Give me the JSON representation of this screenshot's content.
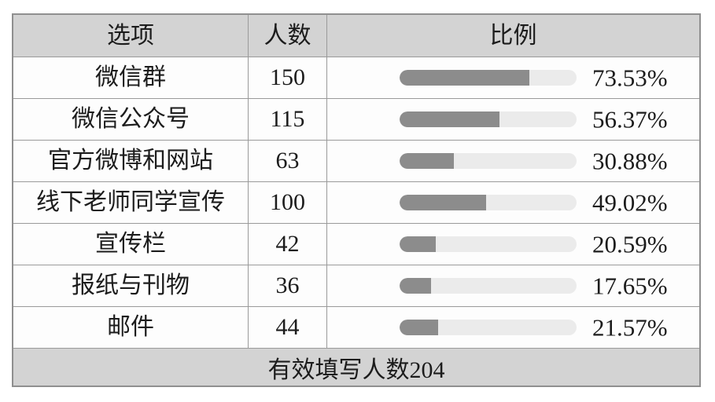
{
  "colors": {
    "header_bg": "#d3d3d3",
    "footer_bg": "#d3d3d3",
    "border": "#9a9a9a",
    "bar_fill": "#8c8c8c",
    "bar_track": "#ebebeb",
    "text": "#1c1c1c",
    "row_bg": "#fdfdfd"
  },
  "table": {
    "headers": {
      "option": "选项",
      "count": "人数",
      "ratio": "比例"
    },
    "rows": [
      {
        "option": "微信群",
        "count": "150",
        "percent_label": "73.53%",
        "percent_value": 73.53
      },
      {
        "option": "微信公众号",
        "count": "115",
        "percent_label": "56.37%",
        "percent_value": 56.37
      },
      {
        "option": "官方微博和网站",
        "count": "63",
        "percent_label": "30.88%",
        "percent_value": 30.88
      },
      {
        "option": "线下老师同学宣传",
        "count": "100",
        "percent_label": "49.02%",
        "percent_value": 49.02
      },
      {
        "option": "宣传栏",
        "count": "42",
        "percent_label": "20.59%",
        "percent_value": 20.59
      },
      {
        "option": "报纸与刊物",
        "count": "36",
        "percent_label": "17.65%",
        "percent_value": 17.65
      },
      {
        "option": "邮件",
        "count": "44",
        "percent_label": "21.57%",
        "percent_value": 21.57
      }
    ],
    "footer": "有效填写人数204"
  },
  "chart_data": {
    "type": "table",
    "columns": [
      "选项",
      "人数",
      "比例"
    ],
    "categories": [
      "微信群",
      "微信公众号",
      "官方微博和网站",
      "线下老师同学宣传",
      "宣传栏",
      "报纸与刊物",
      "邮件"
    ],
    "series": [
      {
        "name": "人数",
        "values": [
          150,
          115,
          63,
          100,
          42,
          36,
          44
        ]
      },
      {
        "name": "比例(%)",
        "values": [
          73.53,
          56.37,
          30.88,
          49.02,
          20.59,
          17.65,
          21.57
        ]
      }
    ],
    "bar_axis_range": [
      0,
      100
    ],
    "footer_note": "有效填写人数204",
    "total_respondents": 204,
    "legend": "none",
    "grid": false
  }
}
